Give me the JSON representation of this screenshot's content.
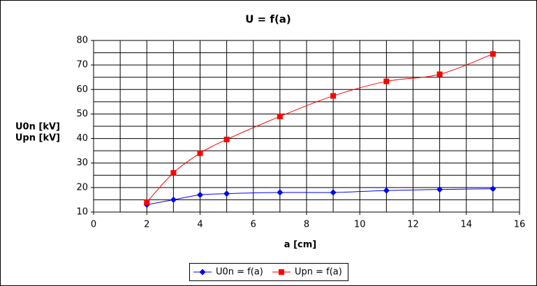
{
  "chart_data": {
    "type": "line",
    "title": "U = f(a)",
    "x_label": "a [cm]",
    "y_label": [
      "U0n [kV]",
      "Upn [kV]"
    ],
    "x": [
      2,
      3,
      4,
      5,
      7,
      9,
      11,
      13,
      15
    ],
    "series": [
      {
        "name": "U0n = f(a)",
        "color": "#0000ff",
        "marker": "diamond",
        "values": [
          13,
          15,
          17,
          17.5,
          18,
          18,
          18.8,
          19.2,
          19.5
        ]
      },
      {
        "name": "Upn = f(a)",
        "color": "#ff0000",
        "marker": "square",
        "values": [
          14,
          26,
          34,
          39.6,
          49,
          57.4,
          63.3,
          66.2,
          74.5
        ]
      }
    ],
    "xlim": [
      0,
      16
    ],
    "xticks": [
      0,
      2,
      4,
      6,
      8,
      10,
      12,
      14,
      16
    ],
    "ylim": [
      10,
      80
    ],
    "yticks": [
      10,
      20,
      30,
      40,
      50,
      60,
      70,
      80
    ],
    "grid": true,
    "minor_grid": true,
    "legend": "bottom",
    "smooth": true
  }
}
